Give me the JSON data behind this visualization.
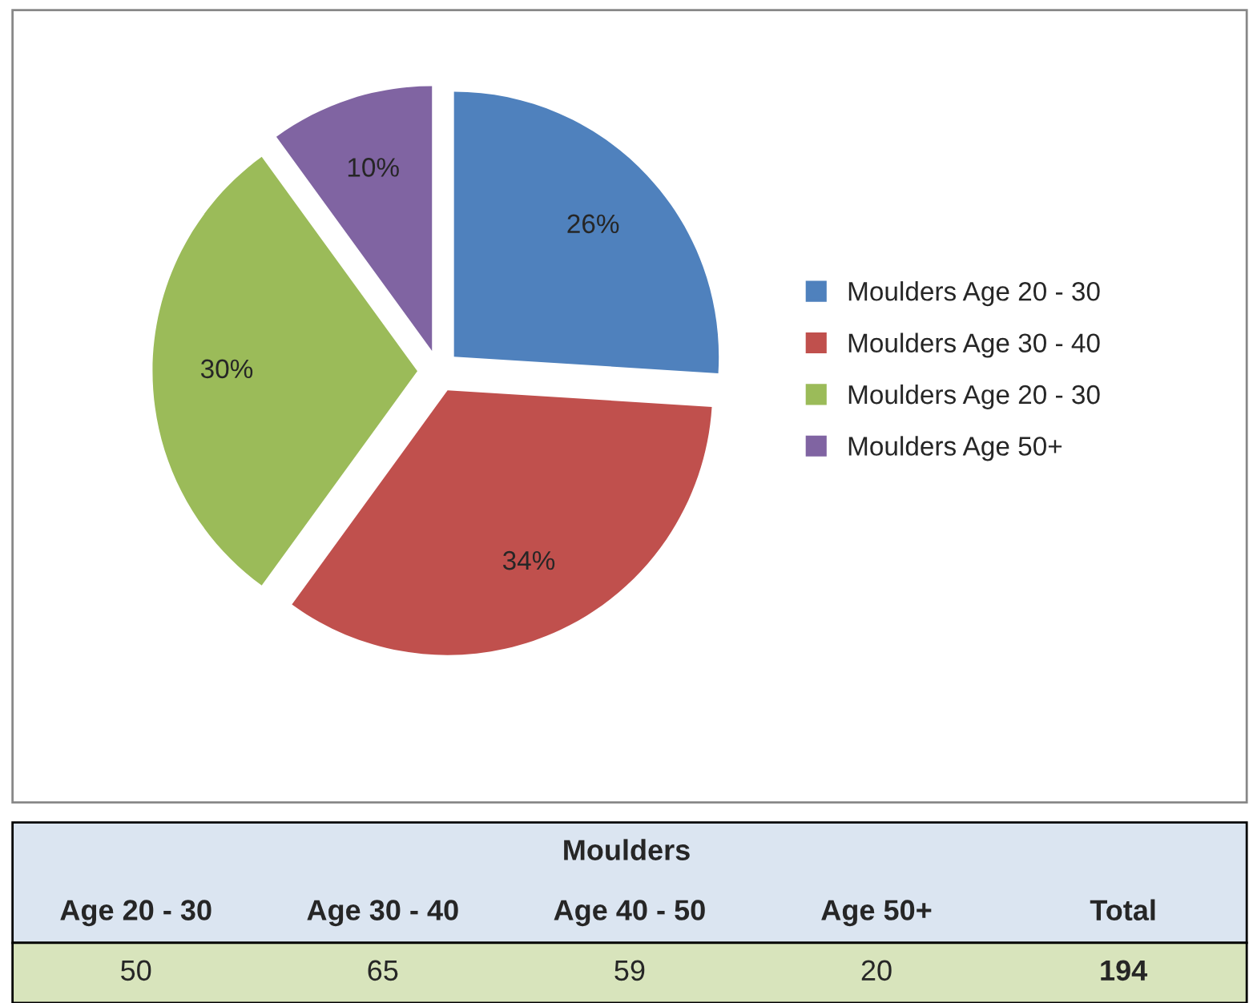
{
  "chart_data": {
    "type": "pie",
    "categories": [
      "Moulders Age 20 - 30",
      "Moulders Age 30 - 40",
      "Moulders Age 20 - 30",
      "Moulders Age 50+"
    ],
    "values": [
      26,
      34,
      30,
      10
    ],
    "value_labels": [
      "26%",
      "34%",
      "30%",
      "10%"
    ],
    "colors": [
      "#4f81bd",
      "#c0504d",
      "#9bbb59",
      "#8064a2"
    ],
    "legend": "right",
    "annotations": [
      "Moulders",
      "Age 20 - 30",
      "Age 30 - 40",
      "Age 40 - 50",
      "Age 50+",
      "Total",
      "50",
      "65",
      "59",
      "20"
    ],
    "totals": [
      "194"
    ]
  }
}
